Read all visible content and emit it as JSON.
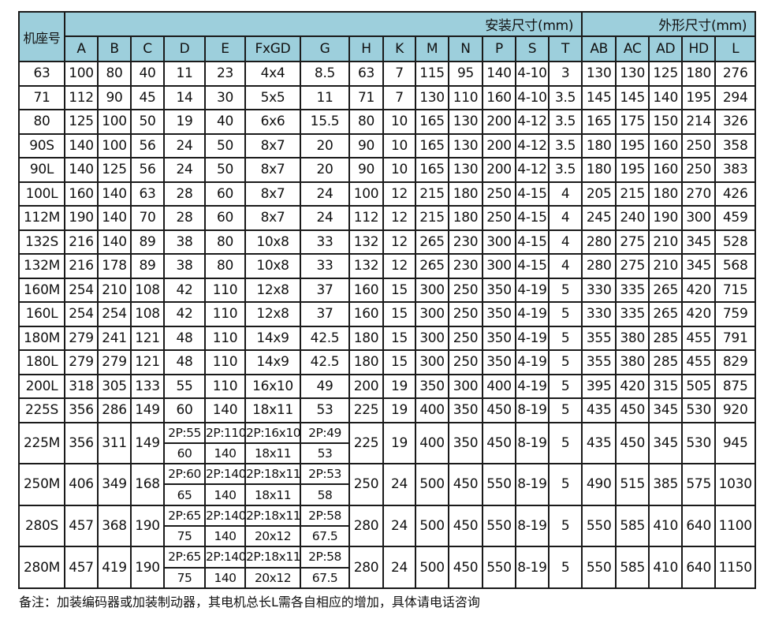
{
  "header": {
    "frame": "机座号",
    "install": "安装尺寸(mm)",
    "outline": "外形尺寸(mm)",
    "columns": [
      "A",
      "B",
      "C",
      "D",
      "E",
      "FxGD",
      "G",
      "H",
      "K",
      "M",
      "N",
      "P",
      "S",
      "T",
      "AB",
      "AC",
      "AD",
      "HD",
      "L"
    ]
  },
  "rows": [
    [
      "63",
      "100",
      "80",
      "40",
      "11",
      "23",
      "4x4",
      "8.5",
      "63",
      "7",
      "115",
      "95",
      "140",
      "4-10",
      "3",
      "130",
      "130",
      "125",
      "180",
      "276"
    ],
    [
      "71",
      "112",
      "90",
      "45",
      "14",
      "30",
      "5x5",
      "11",
      "71",
      "7",
      "130",
      "110",
      "160",
      "4-10",
      "3.5",
      "145",
      "145",
      "140",
      "195",
      "294"
    ],
    [
      "80",
      "125",
      "100",
      "50",
      "19",
      "40",
      "6x6",
      "15.5",
      "80",
      "10",
      "165",
      "130",
      "200",
      "4-12",
      "3.5",
      "165",
      "175",
      "150",
      "214",
      "326"
    ],
    [
      "90S",
      "140",
      "100",
      "56",
      "24",
      "50",
      "8x7",
      "20",
      "90",
      "10",
      "165",
      "130",
      "200",
      "4-12",
      "3.5",
      "180",
      "195",
      "160",
      "250",
      "358"
    ],
    [
      "90L",
      "140",
      "125",
      "56",
      "24",
      "50",
      "8x7",
      "20",
      "90",
      "10",
      "165",
      "130",
      "200",
      "4-12",
      "3.5",
      "180",
      "195",
      "160",
      "250",
      "383"
    ],
    [
      "100L",
      "160",
      "140",
      "63",
      "28",
      "60",
      "8x7",
      "24",
      "100",
      "12",
      "215",
      "180",
      "250",
      "4-15",
      "4",
      "205",
      "215",
      "180",
      "270",
      "426"
    ],
    [
      "112M",
      "190",
      "140",
      "70",
      "28",
      "60",
      "8x7",
      "24",
      "112",
      "12",
      "215",
      "180",
      "250",
      "4-15",
      "4",
      "245",
      "240",
      "190",
      "300",
      "459"
    ],
    [
      "132S",
      "216",
      "140",
      "89",
      "38",
      "80",
      "10x8",
      "33",
      "132",
      "12",
      "265",
      "230",
      "300",
      "4-15",
      "4",
      "280",
      "275",
      "210",
      "345",
      "528"
    ],
    [
      "132M",
      "216",
      "178",
      "89",
      "38",
      "80",
      "10x8",
      "33",
      "132",
      "12",
      "265",
      "230",
      "300",
      "4-15",
      "4",
      "280",
      "275",
      "210",
      "345",
      "568"
    ],
    [
      "160M",
      "254",
      "210",
      "108",
      "42",
      "110",
      "12x8",
      "37",
      "160",
      "15",
      "300",
      "250",
      "350",
      "4-19",
      "5",
      "330",
      "335",
      "265",
      "420",
      "715"
    ],
    [
      "160L",
      "254",
      "254",
      "108",
      "42",
      "110",
      "12x8",
      "37",
      "160",
      "15",
      "300",
      "250",
      "350",
      "4-19",
      "5",
      "330",
      "335",
      "265",
      "420",
      "759"
    ],
    [
      "180M",
      "279",
      "241",
      "121",
      "48",
      "110",
      "14x9",
      "42.5",
      "180",
      "15",
      "300",
      "250",
      "350",
      "4-19",
      "5",
      "355",
      "380",
      "285",
      "455",
      "791"
    ],
    [
      "180L",
      "279",
      "279",
      "121",
      "48",
      "110",
      "14x9",
      "42.5",
      "180",
      "15",
      "300",
      "250",
      "350",
      "4-19",
      "5",
      "355",
      "380",
      "285",
      "455",
      "829"
    ],
    [
      "200L",
      "318",
      "305",
      "133",
      "55",
      "110",
      "16x10",
      "49",
      "200",
      "19",
      "350",
      "300",
      "400",
      "4-19",
      "5",
      "395",
      "420",
      "315",
      "505",
      "875"
    ],
    [
      "225S",
      "356",
      "286",
      "149",
      "60",
      "140",
      "18x11",
      "53",
      "225",
      "19",
      "400",
      "350",
      "450",
      "8-19",
      "5",
      "435",
      "450",
      "345",
      "530",
      "920"
    ]
  ],
  "split_rows": [
    {
      "frame": "225M",
      "a": [
        "356",
        "311",
        "149"
      ],
      "top": [
        "2P:55",
        "2P:110",
        "2P:16x10",
        "2P:49"
      ],
      "bottom": [
        "60",
        "140",
        "18x11",
        "53"
      ],
      "rest": [
        "225",
        "19",
        "400",
        "350",
        "450",
        "8-19",
        "5",
        "435",
        "450",
        "345",
        "530",
        "945"
      ]
    },
    {
      "frame": "250M",
      "a": [
        "406",
        "349",
        "168"
      ],
      "top": [
        "2P:60",
        "2P:140",
        "2P:18x11",
        "2P:53"
      ],
      "bottom": [
        "65",
        "140",
        "18x11",
        "58"
      ],
      "rest": [
        "250",
        "24",
        "500",
        "450",
        "550",
        "8-19",
        "5",
        "490",
        "515",
        "385",
        "575",
        "1030"
      ]
    },
    {
      "frame": "280S",
      "a": [
        "457",
        "368",
        "190"
      ],
      "top": [
        "2P:65",
        "2P:140",
        "2P:18x11",
        "2P:58"
      ],
      "bottom": [
        "75",
        "140",
        "20x12",
        "67.5"
      ],
      "rest": [
        "280",
        "24",
        "500",
        "450",
        "550",
        "8-19",
        "5",
        "550",
        "585",
        "410",
        "640",
        "1100"
      ]
    },
    {
      "frame": "280M",
      "a": [
        "457",
        "419",
        "190"
      ],
      "top": [
        "2P:65",
        "2P:140",
        "2P:18x11",
        "2P:58"
      ],
      "bottom": [
        "75",
        "140",
        "20x12",
        "67.5"
      ],
      "rest": [
        "280",
        "24",
        "500",
        "450",
        "550",
        "8-19",
        "5",
        "550",
        "585",
        "410",
        "640",
        "1150"
      ]
    }
  ],
  "note": "备注：加装编码器或加装制动器，其电机总长L需各自相应的增加，具体请电话咨询"
}
